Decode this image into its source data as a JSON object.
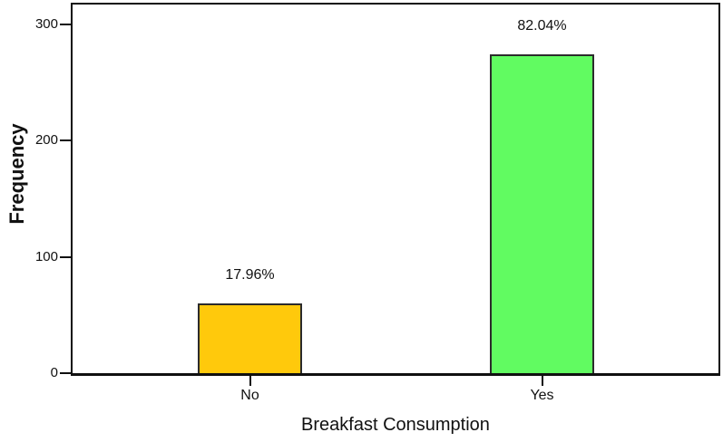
{
  "chart_data": {
    "type": "bar",
    "title": "",
    "xlabel": "Breakfast Consumption",
    "ylabel": "Frequency",
    "categories": [
      "No",
      "Yes"
    ],
    "values": [
      60,
      274
    ],
    "bar_labels": [
      "17.96%",
      "82.04%"
    ],
    "bar_colors": [
      "#ffc90c",
      "#61fb61"
    ],
    "bar_border_color": "#2b2b2b",
    "y_ticks": [
      0,
      100,
      200,
      300
    ],
    "ylim": [
      0,
      317
    ],
    "grid": false,
    "legend": "none",
    "frame_color": "#101010",
    "background": "#ffffff"
  }
}
